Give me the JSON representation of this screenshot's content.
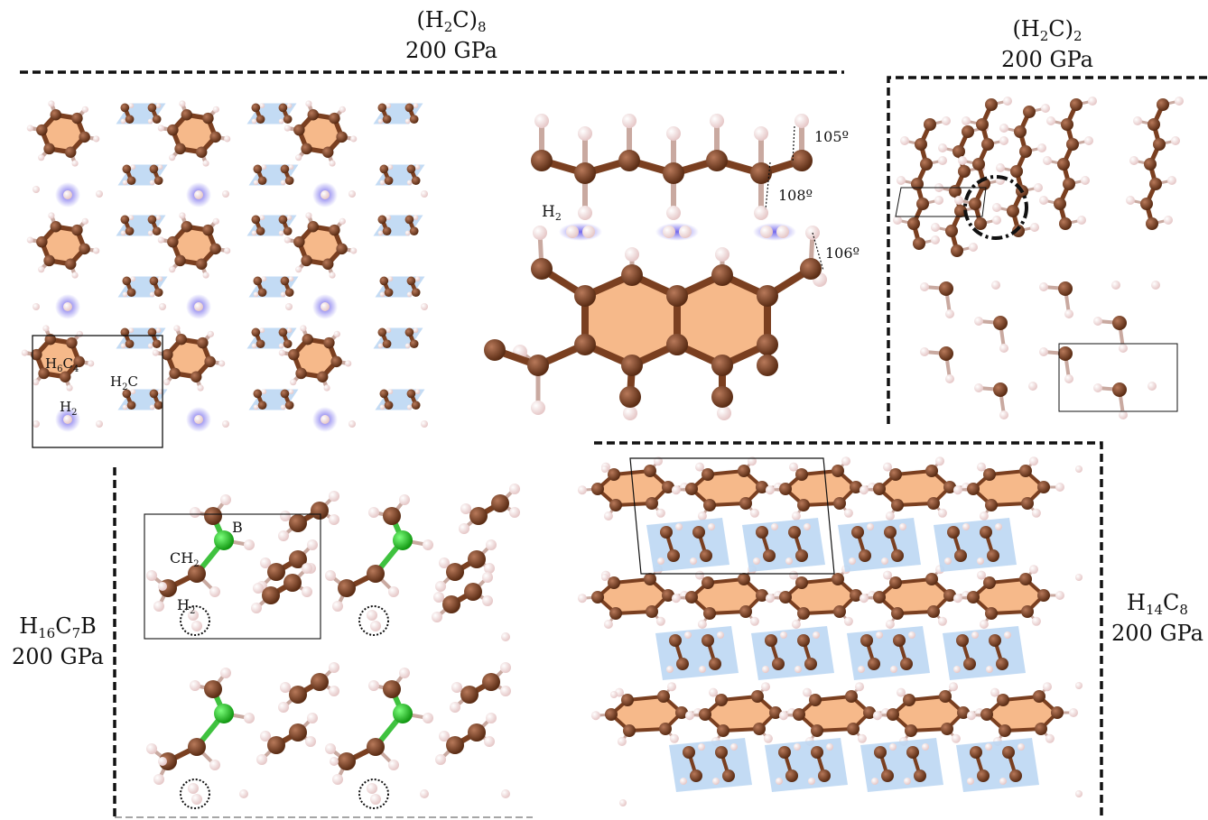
{
  "panels": [
    {
      "id": "h2c8",
      "formula": [
        "(H",
        "2",
        "C)",
        "8"
      ],
      "pressure": "200 GPa",
      "labels": {
        "h6c4": [
          "H",
          "6",
          "C",
          "4"
        ],
        "h2c": [
          "H",
          "2",
          "C"
        ],
        "h2": [
          "H",
          "2"
        ]
      }
    },
    {
      "id": "h2c2",
      "formula": [
        "(H",
        "2",
        "C)",
        "2"
      ],
      "pressure": "200 GPa"
    },
    {
      "id": "h16c7b",
      "formula": [
        "H",
        "16",
        "C",
        "7",
        "B"
      ],
      "pressure": "200 GPa",
      "labels": {
        "b": "B",
        "ch2": [
          "CH",
          "2"
        ],
        "h2": [
          "H",
          "2"
        ]
      }
    },
    {
      "id": "h14c8",
      "formula": [
        "H",
        "14",
        "C",
        "8"
      ],
      "pressure": "200 GPa"
    }
  ],
  "inset": {
    "h2": [
      "H",
      "2"
    ],
    "angles": [
      "105º",
      "108º",
      "106º"
    ]
  },
  "colors": {
    "carbon": "#8b4a2b",
    "hydrogen": "#f3dede",
    "boron": "#22c022",
    "ring_fill": "#f6b98a",
    "chain_fill": "#bcd7f3",
    "h2_glow": "#6b5cf0"
  }
}
